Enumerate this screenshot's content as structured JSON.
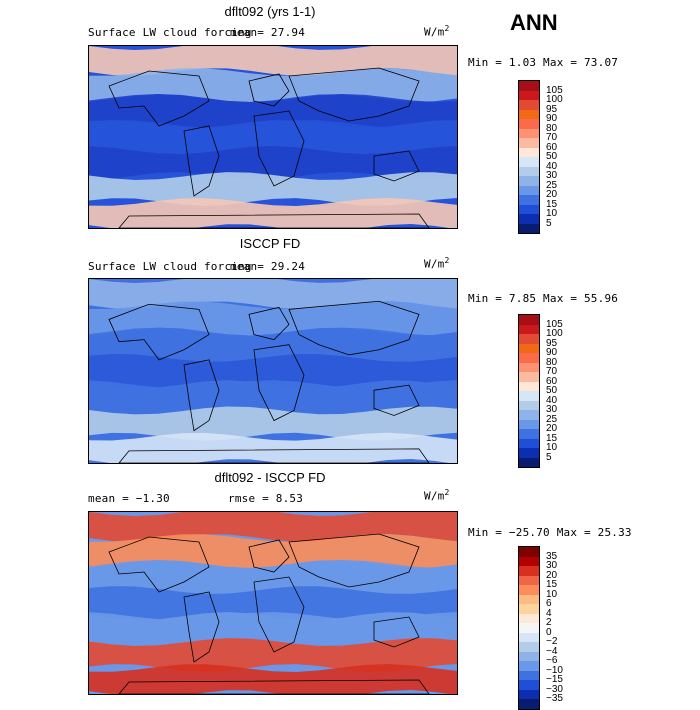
{
  "season": "ANN",
  "panels": [
    {
      "id": "model",
      "title": "dflt092 (yrs 1-1)",
      "subtitle": "Surface LW cloud forcing",
      "mean_text": "mean=  27.94",
      "rmse_text": "",
      "units": "W/m",
      "units_exp": "2",
      "minmax": "Min =   1.03 Max =  73.07",
      "levels": [
        "105",
        "100",
        "95",
        "90",
        "80",
        "70",
        "60",
        "50",
        "40",
        "30",
        "25",
        "20",
        "15",
        "10",
        "5"
      ],
      "colors": [
        "#a50f15",
        "#cb181d",
        "#e34a33",
        "#f16913",
        "#fb6a4a",
        "#fc9272",
        "#fcbba1",
        "#fee6d8",
        "#d6e6f7",
        "#b3cde8",
        "#8fb3e8",
        "#6a98e8",
        "#3f72e0",
        "#1f4fd6",
        "#0b2fb0",
        "#081d70"
      ],
      "map": {
        "base": "#2653d9",
        "bands": [
          "#f6c8b5",
          "#8fb3e8",
          "#1e40c8",
          "#2653d9",
          "#1e40c8",
          "#b3cde8",
          "#f6c8b5"
        ]
      }
    },
    {
      "id": "obs",
      "title": "ISCCP FD",
      "subtitle": "Surface LW cloud forcing",
      "mean_text": "mean=  29.24",
      "rmse_text": "",
      "units": "W/m",
      "units_exp": "2",
      "minmax": "Min =   7.85 Max =  55.96",
      "levels": [
        "105",
        "100",
        "95",
        "90",
        "80",
        "70",
        "60",
        "50",
        "40",
        "30",
        "25",
        "20",
        "15",
        "10",
        "5"
      ],
      "colors": [
        "#a50f15",
        "#cb181d",
        "#e34a33",
        "#f16913",
        "#fb6a4a",
        "#fc9272",
        "#fcbba1",
        "#fee6d8",
        "#d6e6f7",
        "#b3cde8",
        "#8fb3e8",
        "#6a98e8",
        "#3f72e0",
        "#1f4fd6",
        "#0b2fb0",
        "#081d70"
      ],
      "map": {
        "base": "#3f72e0",
        "bands": [
          "#8fb3e8",
          "#6a98e8",
          "#3f72e0",
          "#2a58d8",
          "#3f72e0",
          "#b3cde8",
          "#d6e6f7"
        ]
      }
    },
    {
      "id": "diff",
      "title": "dflt092 - ISCCP FD",
      "subtitle": "",
      "mean_text": "mean =  −1.30",
      "rmse_text": "rmse =   8.53",
      "units": "W/m",
      "units_exp": "2",
      "minmax": "Min = −25.70 Max =  25.33",
      "levels": [
        "35",
        "30",
        "20",
        "15",
        "10",
        "6",
        "4",
        "2",
        "0",
        "−2",
        "−4",
        "−6",
        "−10",
        "−15",
        "−30",
        "−35"
      ],
      "colors": [
        "#7f0000",
        "#b30000",
        "#d7301f",
        "#ef6548",
        "#fc8d59",
        "#fdbb84",
        "#fdd49e",
        "#fee8d8",
        "#f5f5f5",
        "#d6e6f7",
        "#b3cde8",
        "#8fb3e8",
        "#6a98e8",
        "#3f72e0",
        "#1f4fd6",
        "#0b2fb0",
        "#081d70"
      ],
      "map": {
        "base": "#6a98e8",
        "bands": [
          "#e34a33",
          "#fc8d59",
          "#6a98e8",
          "#3f72e0",
          "#6a98e8",
          "#e34a33",
          "#d7301f"
        ]
      }
    }
  ]
}
